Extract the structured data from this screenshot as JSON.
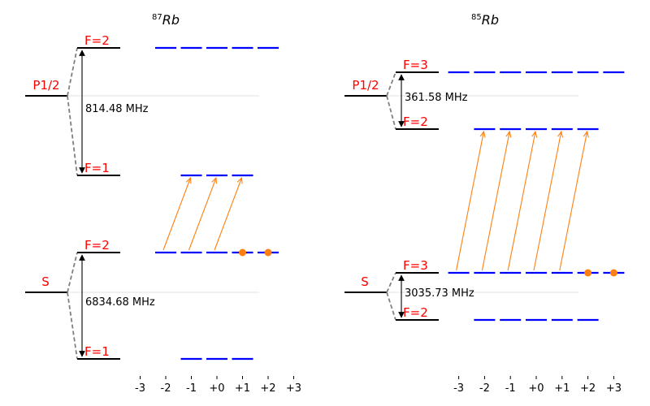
{
  "panels": [
    {
      "title_isotope": "Rb",
      "title_mass": "87",
      "excited": {
        "parent_label": "P1/2",
        "upper_label": "F=2",
        "lower_label": "F=1",
        "splitting_label": "814.48 MHz",
        "upper_sublevels": [
          -2,
          -1,
          0,
          1,
          2
        ],
        "lower_sublevels": [
          -1,
          0,
          1
        ]
      },
      "ground": {
        "parent_label": "S",
        "upper_label": "F=2",
        "lower_label": "F=1",
        "splitting_label": "6834.68 MHz",
        "upper_sublevels": [
          -2,
          -1,
          0,
          1,
          2
        ],
        "lower_sublevels": [
          -1,
          0,
          1
        ]
      },
      "transitions": [
        {
          "from_m": -2,
          "to_m": -1
        },
        {
          "from_m": -1,
          "to_m": 0
        },
        {
          "from_m": 0,
          "to_m": 1
        }
      ],
      "populated_sublevels": [
        1,
        2
      ],
      "x_ticks": [
        "-3",
        "-2",
        "-1",
        "+0",
        "+1",
        "+2",
        "+3"
      ]
    },
    {
      "title_isotope": "Rb",
      "title_mass": "85",
      "excited": {
        "parent_label": "P1/2",
        "upper_label": "F=3",
        "lower_label": "F=2",
        "splitting_label": "361.58 MHz",
        "upper_sublevels": [
          -3,
          -2,
          -1,
          0,
          1,
          2,
          3
        ],
        "lower_sublevels": [
          -2,
          -1,
          0,
          1,
          2
        ]
      },
      "ground": {
        "parent_label": "S",
        "upper_label": "F=3",
        "lower_label": "F=2",
        "splitting_label": "3035.73 MHz",
        "upper_sublevels": [
          -3,
          -2,
          -1,
          0,
          1,
          2,
          3
        ],
        "lower_sublevels": [
          -2,
          -1,
          0,
          1,
          2
        ]
      },
      "transitions": [
        {
          "from_m": -3,
          "to_m": -2
        },
        {
          "from_m": -2,
          "to_m": -1
        },
        {
          "from_m": -1,
          "to_m": 0
        },
        {
          "from_m": 0,
          "to_m": 1
        },
        {
          "from_m": 1,
          "to_m": 2
        }
      ],
      "populated_sublevels": [
        2,
        3
      ],
      "x_ticks": [
        "-3",
        "-2",
        "-1",
        "+0",
        "+1",
        "+2",
        "+3"
      ]
    }
  ],
  "colors": {
    "level_label": "#ff0000",
    "sublevel": "#0000ff",
    "transition": "#ff7f0e",
    "population_dot": "#ff7f0e",
    "main_level": "#000000",
    "connector": "#808080",
    "reference_line": "#d9d9d9"
  }
}
